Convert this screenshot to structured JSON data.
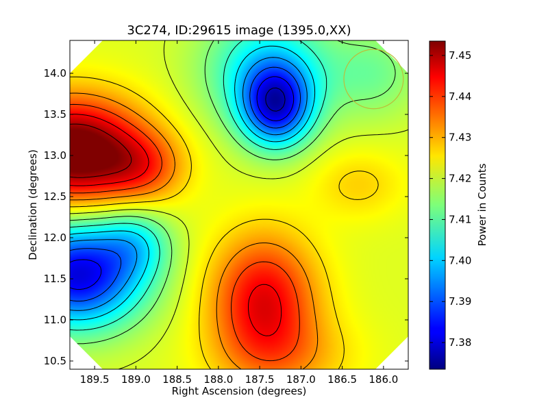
{
  "chart_data": {
    "type": "heatmap",
    "title": "3C274, ID:29615 image (1395.0,XX)",
    "xlabel": "Right Ascension (degrees)",
    "ylabel": "Declination (degrees)",
    "colorbar_label": "Power in Counts",
    "xlim": [
      189.8,
      185.7
    ],
    "ylim": [
      10.4,
      14.4
    ],
    "x_ticks": [
      189.5,
      189.0,
      188.5,
      188.0,
      187.5,
      187.0,
      186.5,
      186.0
    ],
    "x_tick_labels": [
      "189.5",
      "189.0",
      "188.5",
      "188.0",
      "187.5",
      "187.0",
      "186.5",
      "186.0"
    ],
    "y_ticks": [
      10.5,
      11.0,
      11.5,
      12.0,
      12.5,
      13.0,
      13.5,
      14.0
    ],
    "y_tick_labels": [
      "10.5",
      "11.0",
      "11.5",
      "12.0",
      "12.5",
      "13.0",
      "13.5",
      "14.0"
    ],
    "colorbar_range": [
      7.3735,
      7.4535
    ],
    "colorbar_ticks": [
      7.38,
      7.39,
      7.4,
      7.41,
      7.42,
      7.43,
      7.44,
      7.45
    ],
    "colorbar_tick_labels": [
      "7.38",
      "7.39",
      "7.40",
      "7.41",
      "7.42",
      "7.43",
      "7.44",
      "7.45"
    ],
    "colormap": "jet",
    "contour_levels": [
      7.378,
      7.384,
      7.39,
      7.396,
      7.402,
      7.408,
      7.414,
      7.42,
      7.426,
      7.432,
      7.438,
      7.444,
      7.45
    ],
    "field_components": [
      {
        "ra": 189.75,
        "dec": 13.05,
        "amplitude": 0.038,
        "sigma_ra": 0.6,
        "sigma_dec": 0.45
      },
      {
        "ra": 188.9,
        "dec": 12.85,
        "amplitude": 0.012,
        "sigma_ra": 0.35,
        "sigma_dec": 0.3
      },
      {
        "ra": 187.45,
        "dec": 11.25,
        "amplitude": 0.024,
        "sigma_ra": 0.45,
        "sigma_dec": 0.55
      },
      {
        "ra": 187.2,
        "dec": 10.55,
        "amplitude": 0.008,
        "sigma_ra": 0.6,
        "sigma_dec": 0.35
      },
      {
        "ra": 189.7,
        "dec": 11.55,
        "amplitude": -0.04,
        "sigma_ra": 0.55,
        "sigma_dec": 0.45
      },
      {
        "ra": 189.0,
        "dec": 11.95,
        "amplitude": -0.012,
        "sigma_ra": 0.3,
        "sigma_dec": 0.3
      },
      {
        "ra": 187.3,
        "dec": 13.6,
        "amplitude": -0.033,
        "sigma_ra": 0.3,
        "sigma_dec": 0.35
      },
      {
        "ra": 187.4,
        "dec": 14.05,
        "amplitude": -0.018,
        "sigma_ra": 0.55,
        "sigma_dec": 0.5
      },
      {
        "ra": 186.3,
        "dec": 12.65,
        "amplitude": 0.006,
        "sigma_ra": 0.4,
        "sigma_dec": 0.3
      },
      {
        "ra": 186.1,
        "dec": 14.0,
        "amplitude": -0.008,
        "sigma_ra": 0.4,
        "sigma_dec": 0.4
      }
    ],
    "field_base": 7.421,
    "beam_circle": {
      "ra": 186.12,
      "dec": 13.93,
      "radius_deg": 0.36,
      "color": "#bcbc3a"
    },
    "colors": {
      "line": "#000000",
      "beam": "#bcbc3a"
    }
  }
}
